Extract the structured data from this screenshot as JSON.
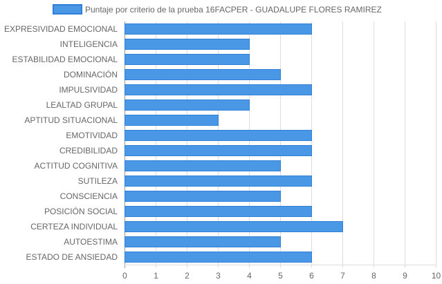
{
  "chart_data": {
    "type": "bar",
    "orientation": "horizontal",
    "legend": {
      "label": "Puntaje por criterio de la prueba 16FACPER - GUADALUPE FLORES RAMIREZ",
      "placement": "top-center"
    },
    "categories": [
      "EXPRESIVIDAD EMOCIONAL",
      "INTELIGENCIA",
      "ESTABILIDAD EMOCIONAL",
      "DOMINACIÓN",
      "IMPULSIVIDAD",
      "LEALTAD GRUPAL",
      "APTITUD SITUACIONAL",
      "EMOTIVIDAD",
      "CREDIBILIDAD",
      "ACTITUD COGNITIVA",
      "SUTILEZA",
      "CONSCIENCIA",
      "POSICIÓN SOCIAL",
      "CERTEZA INDIVIDUAL",
      "AUTOESTIMA",
      "ESTADO DE ANSIEDAD"
    ],
    "series": [
      {
        "name": "Puntaje por criterio de la prueba 16FACPER - GUADALUPE FLORES RAMIREZ",
        "values": [
          6,
          4,
          4,
          5,
          6,
          4,
          3,
          6,
          6,
          5,
          6,
          5,
          6,
          7,
          5,
          6
        ]
      }
    ],
    "xlim": [
      0,
      10
    ],
    "xticks": [
      "0",
      "1",
      "2",
      "3",
      "4",
      "5",
      "6",
      "7",
      "8",
      "9",
      "10"
    ],
    "grid": true,
    "colors": {
      "bar_fill": "#4a97e6",
      "bar_stroke": "#2d7fd8",
      "grid": "#dddddd",
      "axis": "#999999",
      "text": "#666666"
    }
  }
}
